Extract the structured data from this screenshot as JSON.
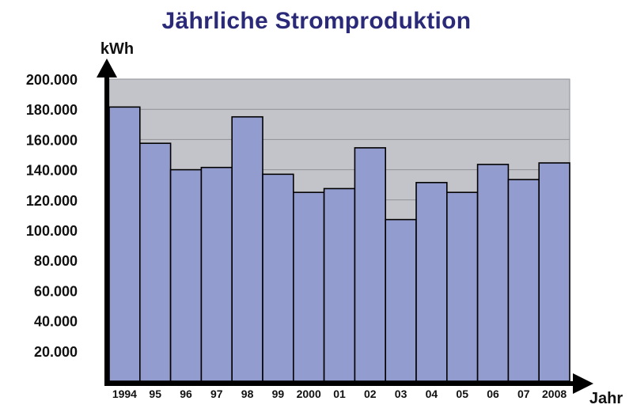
{
  "title": "Jährliche Stromproduktion",
  "chart_data": {
    "type": "bar",
    "title": "Jährliche Stromproduktion",
    "xlabel": "Jahr",
    "ylabel": "kWh",
    "categories": [
      "1994",
      "95",
      "96",
      "97",
      "98",
      "99",
      "2000",
      "01",
      "02",
      "03",
      "04",
      "05",
      "06",
      "07",
      "2008"
    ],
    "values": [
      181500,
      157500,
      140000,
      141500,
      175000,
      137000,
      125000,
      127500,
      154500,
      107000,
      131500,
      125000,
      143500,
      133500,
      144500
    ],
    "yticks": [
      "20.000",
      "40.000",
      "60.000",
      "80.000",
      "100.000",
      "120.000",
      "140.000",
      "160.000",
      "180.000",
      "200.000"
    ],
    "ylim": [
      0,
      200000
    ],
    "grid": true,
    "colors": {
      "bar": "#939cce",
      "plot_background": "#c3c4c9",
      "title": "#2b2a78"
    }
  }
}
